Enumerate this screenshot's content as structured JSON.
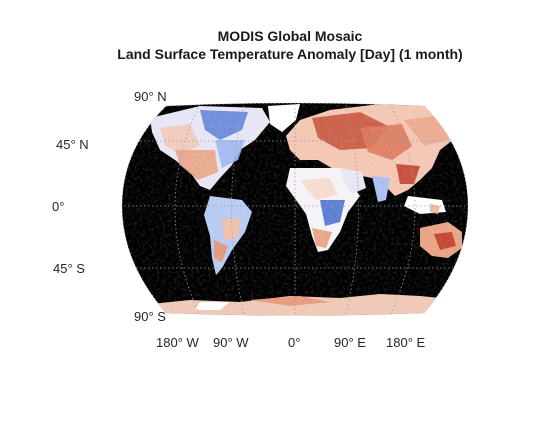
{
  "figure": {
    "title_line1": "MODIS Global Mosaic",
    "title_line2": "Land Surface Temperature Anomaly [Day] (1 month)"
  },
  "map": {
    "projection": "Robinson",
    "background_color": "#000000",
    "graticule_style": "dotted",
    "colormap": {
      "cold": "#2b5cc7",
      "neutral": "#ffffff",
      "warm": "#c0392b"
    },
    "lat_labels": [
      "90° N",
      "45° N",
      "0°",
      "45° S",
      "90° S"
    ],
    "lon_labels": [
      "180° W",
      "90° W",
      "0°",
      "90° E",
      "180° E"
    ]
  }
}
